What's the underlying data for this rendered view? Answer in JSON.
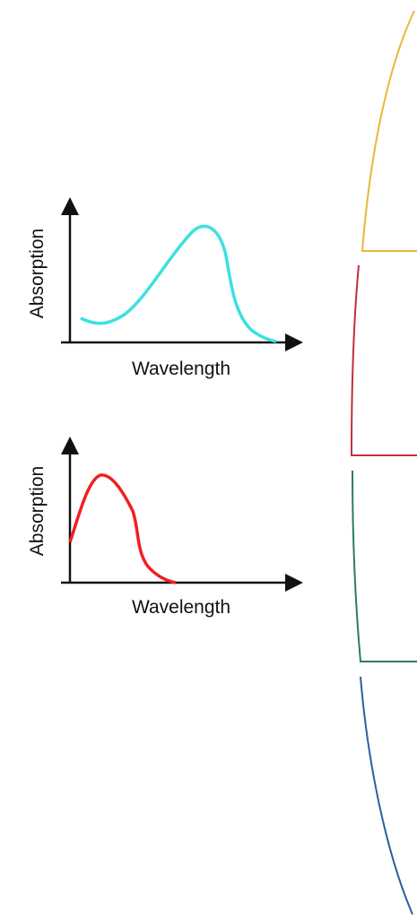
{
  "panels": [
    {
      "y_label": "Absorption",
      "x_label": "Wavelength"
    },
    {
      "y_label": "Absorption",
      "x_label": "Wavelength"
    }
  ]
}
